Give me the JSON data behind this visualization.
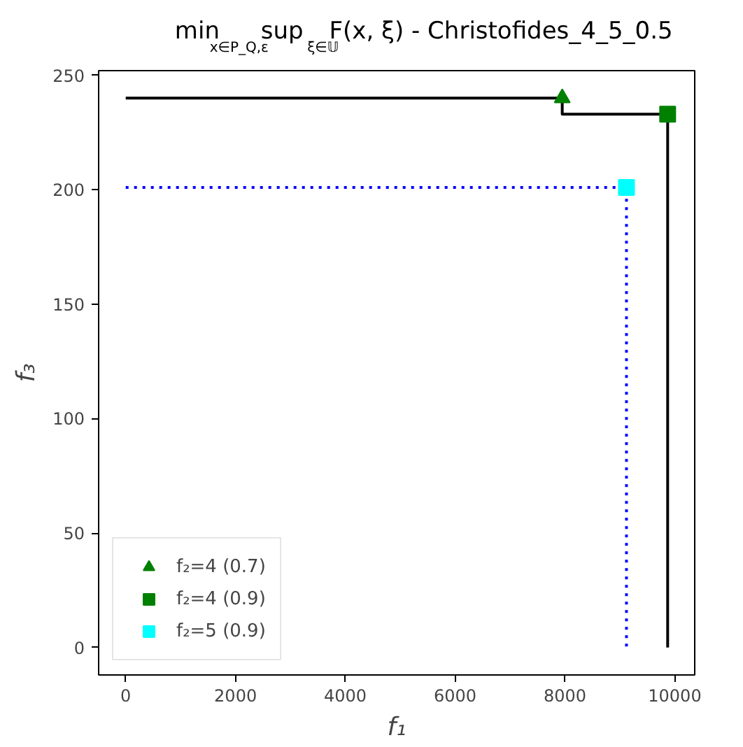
{
  "chart_data": {
    "type": "line",
    "title": "min$_{x∈P_Q,ε}$ sup$_{ξ∈𝕌}$ F(x, ξ) - Christofides_4_5_0.5",
    "xlabel": "f₁",
    "ylabel": "f₃",
    "xlim": [
      -493,
      10363
    ],
    "ylim": [
      -12,
      252
    ],
    "xticks": [
      0,
      2000,
      4000,
      6000,
      8000,
      10000
    ],
    "yticks": [
      0,
      50,
      100,
      150,
      200,
      250
    ],
    "grid": false,
    "legend": "bottom left",
    "series": [
      {
        "type": "line",
        "color": "#000000",
        "line_style": "solid",
        "x": [
          0,
          7950,
          7950,
          9870,
          9870
        ],
        "values": [
          240,
          240,
          233,
          233,
          0
        ]
      },
      {
        "type": "line",
        "color": "#0000ff",
        "line_style": "dotted",
        "x": [
          0,
          9120,
          9120
        ],
        "values": [
          201,
          201,
          0
        ]
      },
      {
        "type": "scatter",
        "name": "f₂=4 (0.7)",
        "color": "#008000",
        "marker": "triangle",
        "x": [
          7950
        ],
        "values": [
          240
        ]
      },
      {
        "type": "scatter",
        "name": "f₂=4 (0.9)",
        "color": "#008000",
        "marker": "square",
        "x": [
          9870
        ],
        "values": [
          233
        ]
      },
      {
        "type": "scatter",
        "name": "f₂=5 (0.9)",
        "color": "#00ffff",
        "marker": "square",
        "x": [
          9120
        ],
        "values": [
          201
        ]
      }
    ]
  }
}
